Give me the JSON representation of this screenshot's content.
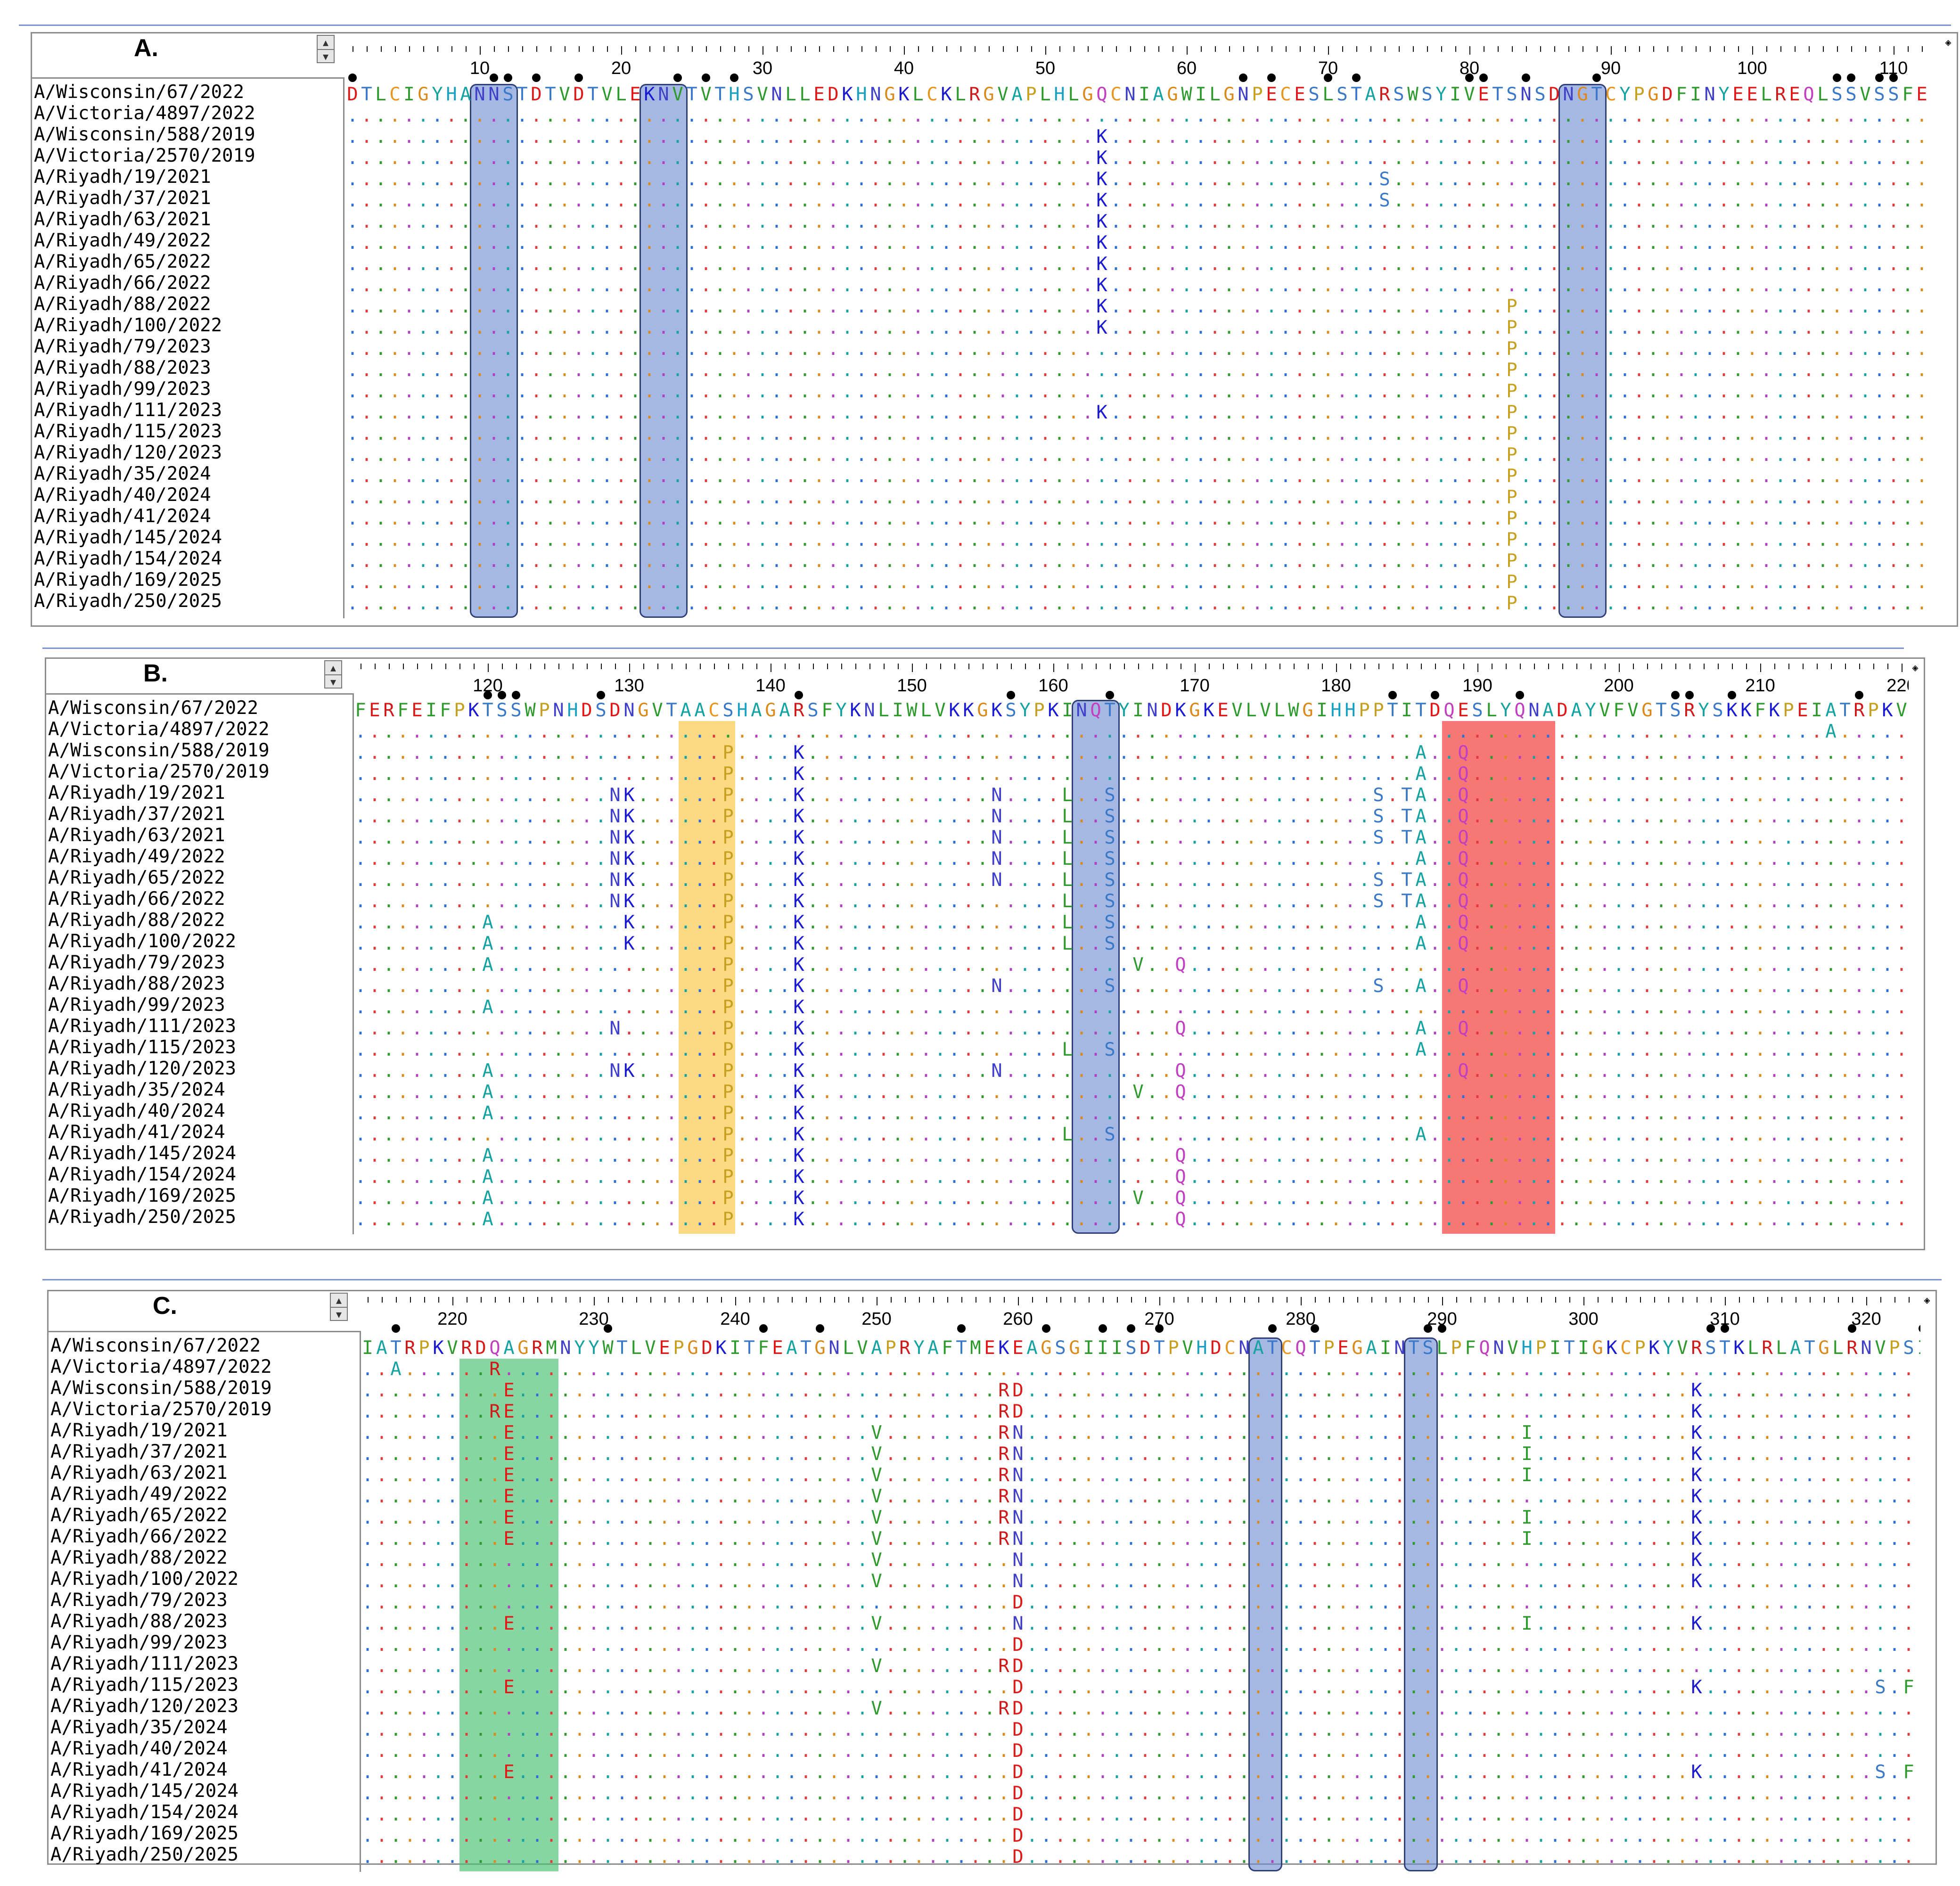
{
  "figure": {
    "panels": [
      {
        "label": "A.",
        "start": 1,
        "tick_labels": [
          10,
          20,
          30,
          40,
          50,
          60,
          70,
          80,
          90,
          100,
          110
        ],
        "dots": [
          1,
          11,
          12,
          14,
          17,
          24,
          26,
          28,
          64,
          66,
          70,
          72,
          80,
          81,
          84,
          89,
          106,
          107,
          109,
          110
        ],
        "highlights": [
          {
            "from": 10,
            "to": 12,
            "color": "blue"
          },
          {
            "from": 22,
            "to": 24,
            "color": "blue"
          },
          {
            "from": 87,
            "to": 89,
            "color": "blue"
          }
        ],
        "reference": "DTLCIGYHANNSTDTVDTVLEKNVTVTHSVNLLEDKHNGKLCKLRGVAPLHLGQCNIAGWILGNPECESLSTARSWSYIVETSNSDNGTCYPGDFINYEELREQLSSVSSFE",
        "rows": [
          {
            "name": "A/Wisconsin/67/2022",
            "mut": {}
          },
          {
            "name": "A/Victoria/4897/2022",
            "mut": {}
          },
          {
            "name": "A/Wisconsin/588/2019",
            "mut": {
              "54": "K"
            }
          },
          {
            "name": "A/Victoria/2570/2019",
            "mut": {
              "54": "K"
            }
          },
          {
            "name": "A/Riyadh/19/2021",
            "mut": {
              "54": "K",
              "74": "S"
            }
          },
          {
            "name": "A/Riyadh/37/2021",
            "mut": {
              "54": "K",
              "74": "S"
            }
          },
          {
            "name": "A/Riyadh/63/2021",
            "mut": {
              "54": "K"
            }
          },
          {
            "name": "A/Riyadh/49/2022",
            "mut": {
              "54": "K"
            }
          },
          {
            "name": "A/Riyadh/65/2022",
            "mut": {
              "54": "K"
            }
          },
          {
            "name": "A/Riyadh/66/2022",
            "mut": {
              "54": "K"
            }
          },
          {
            "name": "A/Riyadh/88/2022",
            "mut": {
              "54": "K",
              "83": "P"
            }
          },
          {
            "name": "A/Riyadh/100/2022",
            "mut": {
              "54": "K",
              "83": "P"
            }
          },
          {
            "name": "A/Riyadh/79/2023",
            "mut": {
              "83": "P"
            }
          },
          {
            "name": "A/Riyadh/88/2023",
            "mut": {
              "83": "P"
            }
          },
          {
            "name": "A/Riyadh/99/2023",
            "mut": {
              "83": "P"
            }
          },
          {
            "name": "A/Riyadh/111/2023",
            "mut": {
              "54": "K",
              "83": "P"
            }
          },
          {
            "name": "A/Riyadh/115/2023",
            "mut": {
              "83": "P"
            }
          },
          {
            "name": "A/Riyadh/120/2023",
            "mut": {
              "83": "P"
            }
          },
          {
            "name": "A/Riyadh/35/2024",
            "mut": {
              "83": "P"
            }
          },
          {
            "name": "A/Riyadh/40/2024",
            "mut": {
              "83": "P"
            }
          },
          {
            "name": "A/Riyadh/41/2024",
            "mut": {
              "83": "P"
            }
          },
          {
            "name": "A/Riyadh/145/2024",
            "mut": {
              "83": "P"
            }
          },
          {
            "name": "A/Riyadh/154/2024",
            "mut": {
              "83": "P"
            }
          },
          {
            "name": "A/Riyadh/169/2025",
            "mut": {
              "83": "P"
            }
          },
          {
            "name": "A/Riyadh/250/2025",
            "mut": {
              "83": "P"
            }
          }
        ]
      },
      {
        "label": "B.",
        "start": 111,
        "tick_labels": [
          120,
          130,
          140,
          150,
          160,
          170,
          180,
          190,
          200,
          210,
          220
        ],
        "dots": [
          120,
          121,
          122,
          128,
          142,
          157,
          164,
          184,
          187,
          193,
          204,
          205,
          208,
          217
        ],
        "highlights": [
          {
            "from": 134,
            "to": 137,
            "color": "yellow"
          },
          {
            "from": 162,
            "to": 164,
            "color": "blue"
          },
          {
            "from": 188,
            "to": 195,
            "color": "red"
          }
        ],
        "reference": "FERFEIFPKTSSWPNHDSDNGVTAACSHAGARSFYKNLIWLVKKGKSYPKINQTYINDKGKEVLVLWGIHHPPTITDQESLYQNADAYVFVGTSRYSKKFKPEIATRPKVRD",
        "rows": [
          {
            "name": "A/Wisconsin/67/2022",
            "mut": {}
          },
          {
            "name": "A/Victoria/4897/2022",
            "mut": {
              "215": "A"
            }
          },
          {
            "name": "A/Wisconsin/588/2019",
            "mut": {
              "137": "P",
              "142": "K",
              "186": "A",
              "189": "Q"
            }
          },
          {
            "name": "A/Victoria/2570/2019",
            "mut": {
              "137": "P",
              "142": "K",
              "186": "A",
              "189": "Q"
            }
          },
          {
            "name": "A/Riyadh/19/2021",
            "mut": {
              "129": "N",
              "130": "K",
              "137": "P",
              "142": "K",
              "156": "N",
              "161": "L",
              "164": "S",
              "183": "S",
              "185": "T",
              "186": "A",
              "189": "Q"
            }
          },
          {
            "name": "A/Riyadh/37/2021",
            "mut": {
              "129": "N",
              "130": "K",
              "137": "P",
              "142": "K",
              "156": "N",
              "161": "L",
              "164": "S",
              "183": "S",
              "185": "T",
              "186": "A",
              "189": "Q"
            }
          },
          {
            "name": "A/Riyadh/63/2021",
            "mut": {
              "129": "N",
              "130": "K",
              "137": "P",
              "142": "K",
              "156": "N",
              "161": "L",
              "164": "S",
              "183": "S",
              "185": "T",
              "186": "A",
              "189": "Q"
            }
          },
          {
            "name": "A/Riyadh/49/2022",
            "mut": {
              "129": "N",
              "130": "K",
              "137": "P",
              "142": "K",
              "156": "N",
              "161": "L",
              "164": "S",
              "186": "A",
              "189": "Q"
            }
          },
          {
            "name": "A/Riyadh/65/2022",
            "mut": {
              "129": "N",
              "130": "K",
              "137": "P",
              "142": "K",
              "156": "N",
              "161": "L",
              "164": "S",
              "183": "S",
              "185": "T",
              "186": "A",
              "189": "Q"
            }
          },
          {
            "name": "A/Riyadh/66/2022",
            "mut": {
              "129": "N",
              "130": "K",
              "137": "P",
              "142": "K",
              "161": "L",
              "164": "S",
              "183": "S",
              "185": "T",
              "186": "A",
              "189": "Q"
            }
          },
          {
            "name": "A/Riyadh/88/2022",
            "mut": {
              "120": "A",
              "130": "K",
              "137": "P",
              "142": "K",
              "161": "L",
              "164": "S",
              "186": "A",
              "189": "Q"
            }
          },
          {
            "name": "A/Riyadh/100/2022",
            "mut": {
              "120": "A",
              "130": "K",
              "137": "P",
              "142": "K",
              "161": "L",
              "164": "S",
              "186": "A",
              "189": "Q"
            }
          },
          {
            "name": "A/Riyadh/79/2023",
            "mut": {
              "120": "A",
              "137": "P",
              "142": "K",
              "166": "V",
              "169": "Q"
            }
          },
          {
            "name": "A/Riyadh/88/2023",
            "mut": {
              "137": "P",
              "142": "K",
              "156": "N",
              "164": "S",
              "183": "S",
              "186": "A",
              "189": "Q"
            }
          },
          {
            "name": "A/Riyadh/99/2023",
            "mut": {
              "120": "A",
              "137": "P",
              "142": "K"
            }
          },
          {
            "name": "A/Riyadh/111/2023",
            "mut": {
              "129": "N",
              "137": "P",
              "142": "K",
              "169": "Q",
              "186": "A",
              "189": "Q"
            }
          },
          {
            "name": "A/Riyadh/115/2023",
            "mut": {
              "137": "P",
              "142": "K",
              "161": "L",
              "164": "S",
              "186": "A"
            }
          },
          {
            "name": "A/Riyadh/120/2023",
            "mut": {
              "120": "A",
              "129": "N",
              "130": "K",
              "137": "P",
              "142": "K",
              "156": "N",
              "169": "Q",
              "189": "Q"
            }
          },
          {
            "name": "A/Riyadh/35/2024",
            "mut": {
              "120": "A",
              "137": "P",
              "142": "K",
              "166": "V",
              "169": "Q"
            }
          },
          {
            "name": "A/Riyadh/40/2024",
            "mut": {
              "120": "A",
              "137": "P",
              "142": "K"
            }
          },
          {
            "name": "A/Riyadh/41/2024",
            "mut": {
              "137": "P",
              "142": "K",
              "161": "L",
              "164": "S",
              "186": "A"
            }
          },
          {
            "name": "A/Riyadh/145/2024",
            "mut": {
              "120": "A",
              "137": "P",
              "142": "K",
              "169": "Q"
            }
          },
          {
            "name": "A/Riyadh/154/2024",
            "mut": {
              "120": "A",
              "137": "P",
              "142": "K",
              "169": "Q"
            }
          },
          {
            "name": "A/Riyadh/169/2025",
            "mut": {
              "120": "A",
              "137": "P",
              "142": "K",
              "166": "V",
              "169": "Q"
            }
          },
          {
            "name": "A/Riyadh/250/2025",
            "mut": {
              "120": "A",
              "137": "P",
              "142": "K",
              "169": "Q"
            }
          }
        ]
      },
      {
        "label": "C.",
        "start": 214,
        "tick_labels": [
          220,
          230,
          240,
          250,
          260,
          270,
          280,
          290,
          300,
          310,
          320
        ],
        "dots": [
          216,
          231,
          242,
          246,
          256,
          262,
          266,
          268,
          270,
          278,
          281,
          289,
          290,
          309,
          310,
          319,
          324
        ],
        "highlights": [
          {
            "from": 221,
            "to": 227,
            "color": "green"
          },
          {
            "from": 277,
            "to": 278,
            "color": "blue"
          },
          {
            "from": 288,
            "to": 289,
            "color": "blue"
          }
        ],
        "reference": "IATRPKVRDQAGRMNYYWTLVEPGDKITFEATGNLVAPRYAFTMEKEAGSGIIISDTPVHDCNATCQTPEGAINTSLPFQNVHPITIGKCPKYVRSTKLRLATGLRNVPSIQ",
        "rows": [
          {
            "name": "A/Wisconsin/67/2022",
            "mut": {}
          },
          {
            "name": "A/Victoria/4897/2022",
            "mut": {
              "216": "A",
              "223": "R"
            }
          },
          {
            "name": "A/Wisconsin/588/2019",
            "mut": {
              "224": "E",
              "259": "R",
              "260": "D",
              "308": "K"
            }
          },
          {
            "name": "A/Victoria/2570/2019",
            "mut": {
              "223": "R",
              "224": "E",
              "259": "R",
              "260": "D",
              "308": "K"
            }
          },
          {
            "name": "A/Riyadh/19/2021",
            "mut": {
              "224": "E",
              "250": "V",
              "259": "R",
              "260": "N",
              "296": "I",
              "308": "K"
            }
          },
          {
            "name": "A/Riyadh/37/2021",
            "mut": {
              "224": "E",
              "250": "V",
              "259": "R",
              "260": "N",
              "296": "I",
              "308": "K"
            }
          },
          {
            "name": "A/Riyadh/63/2021",
            "mut": {
              "224": "E",
              "250": "V",
              "259": "R",
              "260": "N",
              "296": "I",
              "308": "K"
            }
          },
          {
            "name": "A/Riyadh/49/2022",
            "mut": {
              "224": "E",
              "250": "V",
              "259": "R",
              "260": "N",
              "308": "K"
            }
          },
          {
            "name": "A/Riyadh/65/2022",
            "mut": {
              "224": "E",
              "250": "V",
              "259": "R",
              "260": "N",
              "296": "I",
              "308": "K"
            }
          },
          {
            "name": "A/Riyadh/66/2022",
            "mut": {
              "224": "E",
              "250": "V",
              "259": "R",
              "260": "N",
              "296": "I",
              "308": "K"
            }
          },
          {
            "name": "A/Riyadh/88/2022",
            "mut": {
              "250": "V",
              "260": "N",
              "308": "K"
            }
          },
          {
            "name": "A/Riyadh/100/2022",
            "mut": {
              "250": "V",
              "260": "N",
              "308": "K"
            }
          },
          {
            "name": "A/Riyadh/79/2023",
            "mut": {
              "260": "D"
            }
          },
          {
            "name": "A/Riyadh/88/2023",
            "mut": {
              "224": "E",
              "250": "V",
              "260": "N",
              "296": "I",
              "308": "K"
            }
          },
          {
            "name": "A/Riyadh/99/2023",
            "mut": {
              "260": "D"
            }
          },
          {
            "name": "A/Riyadh/111/2023",
            "mut": {
              "250": "V",
              "259": "R",
              "260": "D"
            }
          },
          {
            "name": "A/Riyadh/115/2023",
            "mut": {
              "224": "E",
              "260": "D",
              "308": "K",
              "321": "S",
              "323": "F"
            }
          },
          {
            "name": "A/Riyadh/120/2023",
            "mut": {
              "250": "V",
              "259": "R",
              "260": "D"
            }
          },
          {
            "name": "A/Riyadh/35/2024",
            "mut": {
              "260": "D"
            }
          },
          {
            "name": "A/Riyadh/40/2024",
            "mut": {
              "260": "D"
            }
          },
          {
            "name": "A/Riyadh/41/2024",
            "mut": {
              "224": "E",
              "260": "D",
              "308": "K",
              "321": "S",
              "323": "F"
            }
          },
          {
            "name": "A/Riyadh/145/2024",
            "mut": {
              "260": "D"
            }
          },
          {
            "name": "A/Riyadh/154/2024",
            "mut": {
              "260": "D"
            }
          },
          {
            "name": "A/Riyadh/169/2025",
            "mut": {
              "260": "D"
            }
          },
          {
            "name": "A/Riyadh/250/2025",
            "mut": {
              "260": "D"
            }
          }
        ]
      }
    ],
    "residue_colors": {
      "A": "#17a2a2",
      "V": "#2e9a2e",
      "L": "#2e9a2e",
      "I": "#2e9a2e",
      "M": "#2e9a2e",
      "F": "#2e9a2e",
      "W": "#2e9a2e",
      "C": "#e8961e",
      "G": "#d98a1a",
      "P": "#c8a020",
      "S": "#3a78c8",
      "T": "#3a78c8",
      "N": "#4040c8",
      "Q": "#c040c0",
      "Y": "#17a2a2",
      "H": "#1aa0c0",
      "D": "#e01818",
      "E": "#e01818",
      "K": "#1a1ad0",
      "R": "#d01818"
    },
    "dot_palette": [
      "#2b6fd6",
      "#e03a3a",
      "#2e9a2e",
      "#d98a1a",
      "#b040c0",
      "#17a2a2"
    ]
  }
}
